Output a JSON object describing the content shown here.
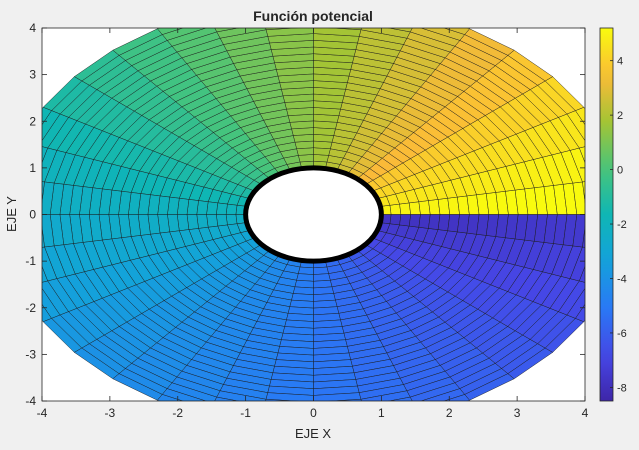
{
  "chart_data": {
    "type": "heatmap",
    "plot": "filled polar mesh (surface viewed from above)",
    "title": "Función potencial",
    "xlabel": "EJE X",
    "ylabel": "EJE Y",
    "xlim": [
      -4,
      4
    ],
    "ylim": [
      -4,
      4
    ],
    "xticks": [
      -4,
      -3,
      -2,
      -1,
      0,
      1,
      2,
      3,
      4
    ],
    "yticks": [
      -4,
      -3,
      -2,
      -1,
      0,
      1,
      2,
      3,
      4
    ],
    "grid": false,
    "colormap": "parula",
    "colorbar": {
      "location": "right",
      "limits": [
        -8.5,
        5.2
      ],
      "ticks": [
        -8,
        -6,
        -4,
        -2,
        0,
        2,
        4
      ]
    },
    "inner_boundary": {
      "shape": "circle",
      "radius": 1,
      "color": "#000000"
    },
    "outer_radius": 4.6,
    "angular_divisions": 36,
    "radial_divisions": 25,
    "potential": "phi = 4.6 * (r + 1/r) * cos(theta) / (2*pi) + (theta - pi) * 4.6 / (2*pi) * ... (approx.)"
  }
}
